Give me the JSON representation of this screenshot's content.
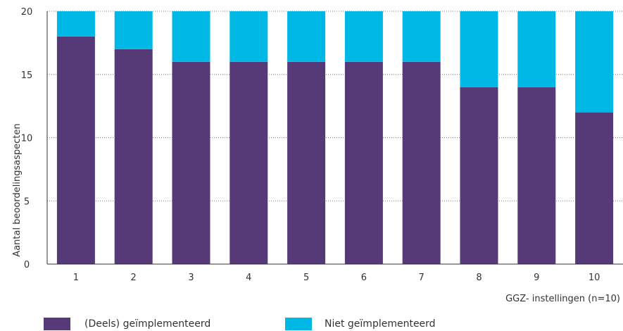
{
  "chart_data": {
    "type": "bar",
    "stacked": true,
    "categories": [
      "1",
      "2",
      "3",
      "4",
      "5",
      "6",
      "7",
      "8",
      "9",
      "10"
    ],
    "series": [
      {
        "name": "(Deels) geïmplementeerd",
        "color": "#563a78",
        "values": [
          18,
          17,
          16,
          16,
          16,
          16,
          16,
          14,
          14,
          12
        ]
      },
      {
        "name": "Niet geïmplementeerd",
        "color": "#00b8e6",
        "values": [
          2,
          3,
          4,
          4,
          4,
          4,
          4,
          6,
          6,
          8
        ]
      }
    ],
    "ylabel": "Aantal beoordelingsaspecten",
    "xlabel": "GGZ- instellingen (n=10)",
    "ylim": [
      0,
      20
    ],
    "yticks": [
      "0",
      "5",
      "10",
      "15",
      "20"
    ],
    "grid": "horizontal dotted",
    "legend_position": "bottom"
  }
}
